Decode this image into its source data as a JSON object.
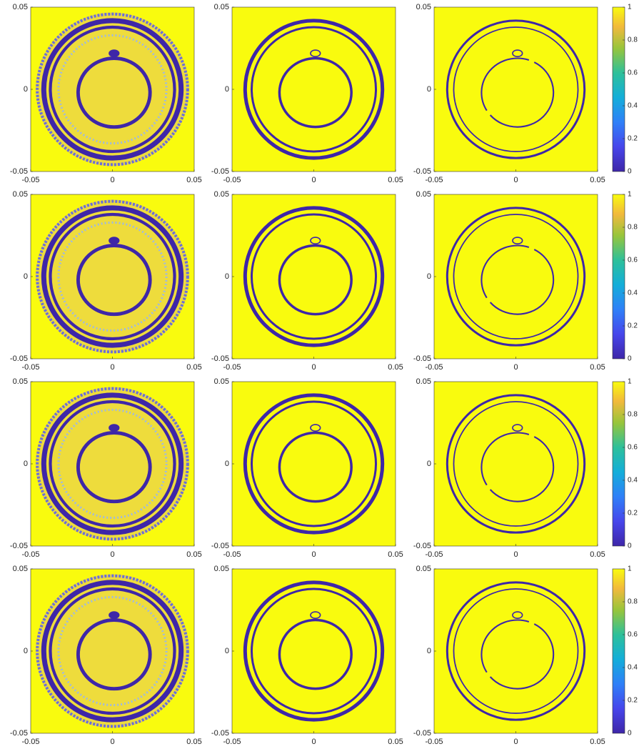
{
  "chart_data": [
    {
      "type": "heatmap",
      "colormap": "parula",
      "xlim": [
        -0.05,
        0.05
      ],
      "ylim": [
        -0.05,
        0.05
      ],
      "xticks": [
        -0.05,
        0,
        0.05
      ],
      "yticks": [
        -0.05,
        0,
        0.05
      ]
    },
    {
      "type": "heatmap",
      "colormap": "parula",
      "xlim": [
        -0.05,
        0.05
      ],
      "ylim": [
        -0.05,
        0.05
      ],
      "xticks": [
        -0.05,
        0,
        0.05
      ],
      "yticks": [
        -0.05,
        0,
        0.05
      ]
    },
    {
      "type": "heatmap",
      "colormap": "parula",
      "xlim": [
        -0.05,
        0.05
      ],
      "ylim": [
        -0.05,
        0.05
      ],
      "xticks": [
        -0.05,
        0,
        0.05
      ],
      "yticks": [
        -0.05,
        0,
        0.05
      ],
      "colorbar": {
        "clim": [
          0,
          1
        ],
        "ticks": [
          0,
          0.2,
          0.4,
          0.6,
          0.8,
          1
        ]
      }
    },
    {
      "type": "heatmap",
      "colormap": "parula",
      "xlim": [
        -0.05,
        0.05
      ],
      "ylim": [
        -0.05,
        0.05
      ],
      "xticks": [
        -0.05,
        0,
        0.05
      ],
      "yticks": [
        -0.05,
        0,
        0.05
      ]
    },
    {
      "type": "heatmap",
      "colormap": "parula",
      "xlim": [
        -0.05,
        0.05
      ],
      "ylim": [
        -0.05,
        0.05
      ],
      "xticks": [
        -0.05,
        0,
        0.05
      ],
      "yticks": [
        -0.05,
        0,
        0.05
      ]
    },
    {
      "type": "heatmap",
      "colormap": "parula",
      "xlim": [
        -0.05,
        0.05
      ],
      "ylim": [
        -0.05,
        0.05
      ],
      "xticks": [
        -0.05,
        0,
        0.05
      ],
      "yticks": [
        -0.05,
        0,
        0.05
      ],
      "colorbar": {
        "clim": [
          0,
          1
        ],
        "ticks": [
          0,
          0.2,
          0.4,
          0.6,
          0.8,
          1
        ]
      }
    },
    {
      "type": "heatmap",
      "colormap": "parula",
      "xlim": [
        -0.05,
        0.05
      ],
      "ylim": [
        -0.05,
        0.05
      ],
      "xticks": [
        -0.05,
        0,
        0.05
      ],
      "yticks": [
        -0.05,
        0,
        0.05
      ]
    },
    {
      "type": "heatmap",
      "colormap": "parula",
      "xlim": [
        -0.05,
        0.05
      ],
      "ylim": [
        -0.05,
        0.05
      ],
      "xticks": [
        -0.05,
        0,
        0.05
      ],
      "yticks": [
        -0.05,
        0,
        0.05
      ]
    },
    {
      "type": "heatmap",
      "colormap": "parula",
      "xlim": [
        -0.05,
        0.05
      ],
      "ylim": [
        -0.05,
        0.05
      ],
      "xticks": [
        -0.05,
        0,
        0.05
      ],
      "yticks": [
        -0.05,
        0,
        0.05
      ],
      "colorbar": {
        "clim": [
          0,
          1
        ],
        "ticks": [
          0,
          0.2,
          0.4,
          0.6,
          0.8,
          1
        ]
      }
    },
    {
      "type": "heatmap",
      "colormap": "parula",
      "xlim": [
        -0.05,
        0.05
      ],
      "ylim": [
        -0.05,
        0.05
      ],
      "xticks": [
        -0.05,
        0,
        0.05
      ],
      "yticks": [
        -0.05,
        0,
        0.05
      ]
    },
    {
      "type": "heatmap",
      "colormap": "parula",
      "xlim": [
        -0.05,
        0.05
      ],
      "ylim": [
        -0.05,
        0.05
      ],
      "xticks": [
        -0.05,
        0,
        0.05
      ],
      "yticks": [
        -0.05,
        0,
        0.05
      ]
    },
    {
      "type": "heatmap",
      "colormap": "parula",
      "xlim": [
        -0.05,
        0.05
      ],
      "ylim": [
        -0.05,
        0.05
      ],
      "xticks": [
        -0.05,
        0,
        0.05
      ],
      "yticks": [
        -0.05,
        0,
        0.05
      ],
      "colorbar": {
        "clim": [
          0,
          1
        ],
        "ticks": [
          0,
          0.2,
          0.4,
          0.6,
          0.8,
          1
        ]
      }
    }
  ]
}
